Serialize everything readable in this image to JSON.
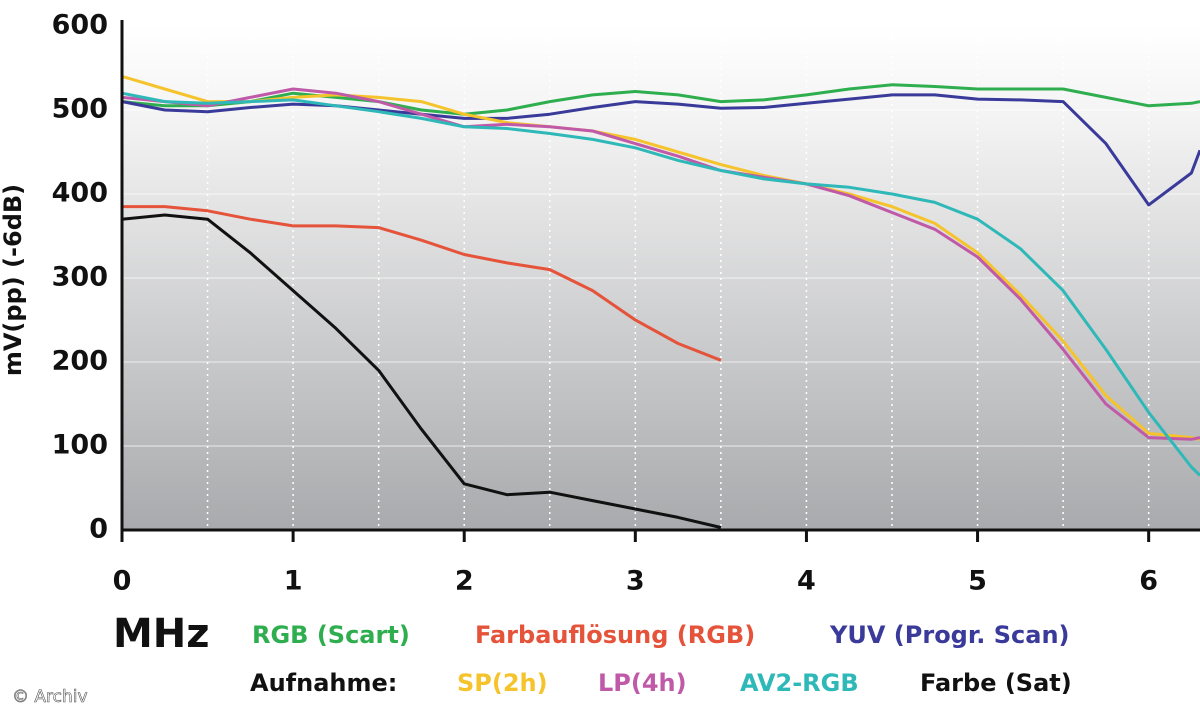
{
  "chart_data": {
    "type": "line",
    "ylabel": "mV(pp) (-6dB)",
    "xlabel": "MHz",
    "legend_heading": "Aufnahme:",
    "watermark": "© Archiv",
    "x": [
      0,
      0.25,
      0.5,
      0.75,
      1,
      1.25,
      1.5,
      1.75,
      2,
      2.25,
      2.5,
      2.75,
      3,
      3.25,
      3.5,
      3.75,
      4,
      4.25,
      4.5,
      4.75,
      5,
      5.25,
      5.5,
      5.75,
      6,
      6.25,
      6.3
    ],
    "xlim": [
      0,
      6.3
    ],
    "xticks": [
      0,
      1,
      2,
      3,
      4,
      5,
      6
    ],
    "xgrid": [
      0.5,
      1,
      1.5,
      2,
      2.5,
      3,
      3.5,
      4,
      4.5,
      5,
      5.5,
      6
    ],
    "ylim": [
      0,
      600
    ],
    "yticks": [
      0,
      100,
      200,
      300,
      400,
      500,
      600
    ],
    "grid": true,
    "series": [
      {
        "name": "RGB (Scart)",
        "color": "#2fae4f",
        "values": [
          510,
          505,
          505,
          510,
          520,
          515,
          510,
          500,
          495,
          500,
          510,
          518,
          522,
          518,
          510,
          512,
          518,
          525,
          530,
          528,
          525,
          525,
          525,
          515,
          505,
          508,
          510
        ]
      },
      {
        "name": "Farbauflösung (RGB)",
        "color": "#e5533a",
        "values": [
          385,
          385,
          380,
          370,
          362,
          362,
          360,
          345,
          328,
          318,
          310,
          285,
          250,
          222,
          202,
          null,
          null,
          null,
          null,
          null,
          null,
          null,
          null,
          null,
          null,
          null,
          null
        ]
      },
      {
        "name": "YUV (Progr. Scan)",
        "color": "#3a3a9a",
        "values": [
          510,
          500,
          498,
          503,
          507,
          505,
          500,
          495,
          490,
          490,
          495,
          503,
          510,
          507,
          502,
          503,
          508,
          513,
          518,
          518,
          513,
          512,
          510,
          460,
          387,
          425,
          452
        ]
      },
      {
        "name": "SP(2h)",
        "color": "#f5c32c",
        "values": [
          540,
          525,
          510,
          510,
          515,
          518,
          515,
          510,
          495,
          485,
          480,
          475,
          465,
          450,
          435,
          422,
          412,
          400,
          385,
          365,
          330,
          280,
          225,
          160,
          115,
          110,
          108
        ]
      },
      {
        "name": "LP(4h)",
        "color": "#c05aa8",
        "values": [
          515,
          510,
          505,
          515,
          525,
          520,
          510,
          495,
          480,
          483,
          480,
          475,
          460,
          445,
          428,
          420,
          412,
          398,
          378,
          358,
          325,
          275,
          215,
          150,
          110,
          108,
          110
        ]
      },
      {
        "name": "AV2-RGB",
        "color": "#2fb8b8",
        "values": [
          520,
          510,
          508,
          510,
          512,
          505,
          498,
          490,
          480,
          478,
          472,
          465,
          455,
          440,
          428,
          418,
          412,
          408,
          400,
          390,
          370,
          335,
          285,
          215,
          140,
          75,
          65
        ]
      },
      {
        "name": "Farbe (Sat)",
        "color": "#111111",
        "values": [
          370,
          375,
          370,
          330,
          285,
          240,
          190,
          120,
          55,
          42,
          45,
          35,
          25,
          15,
          3,
          null,
          null,
          null,
          null,
          null,
          null,
          null,
          null,
          null,
          null,
          null,
          null
        ]
      }
    ]
  }
}
